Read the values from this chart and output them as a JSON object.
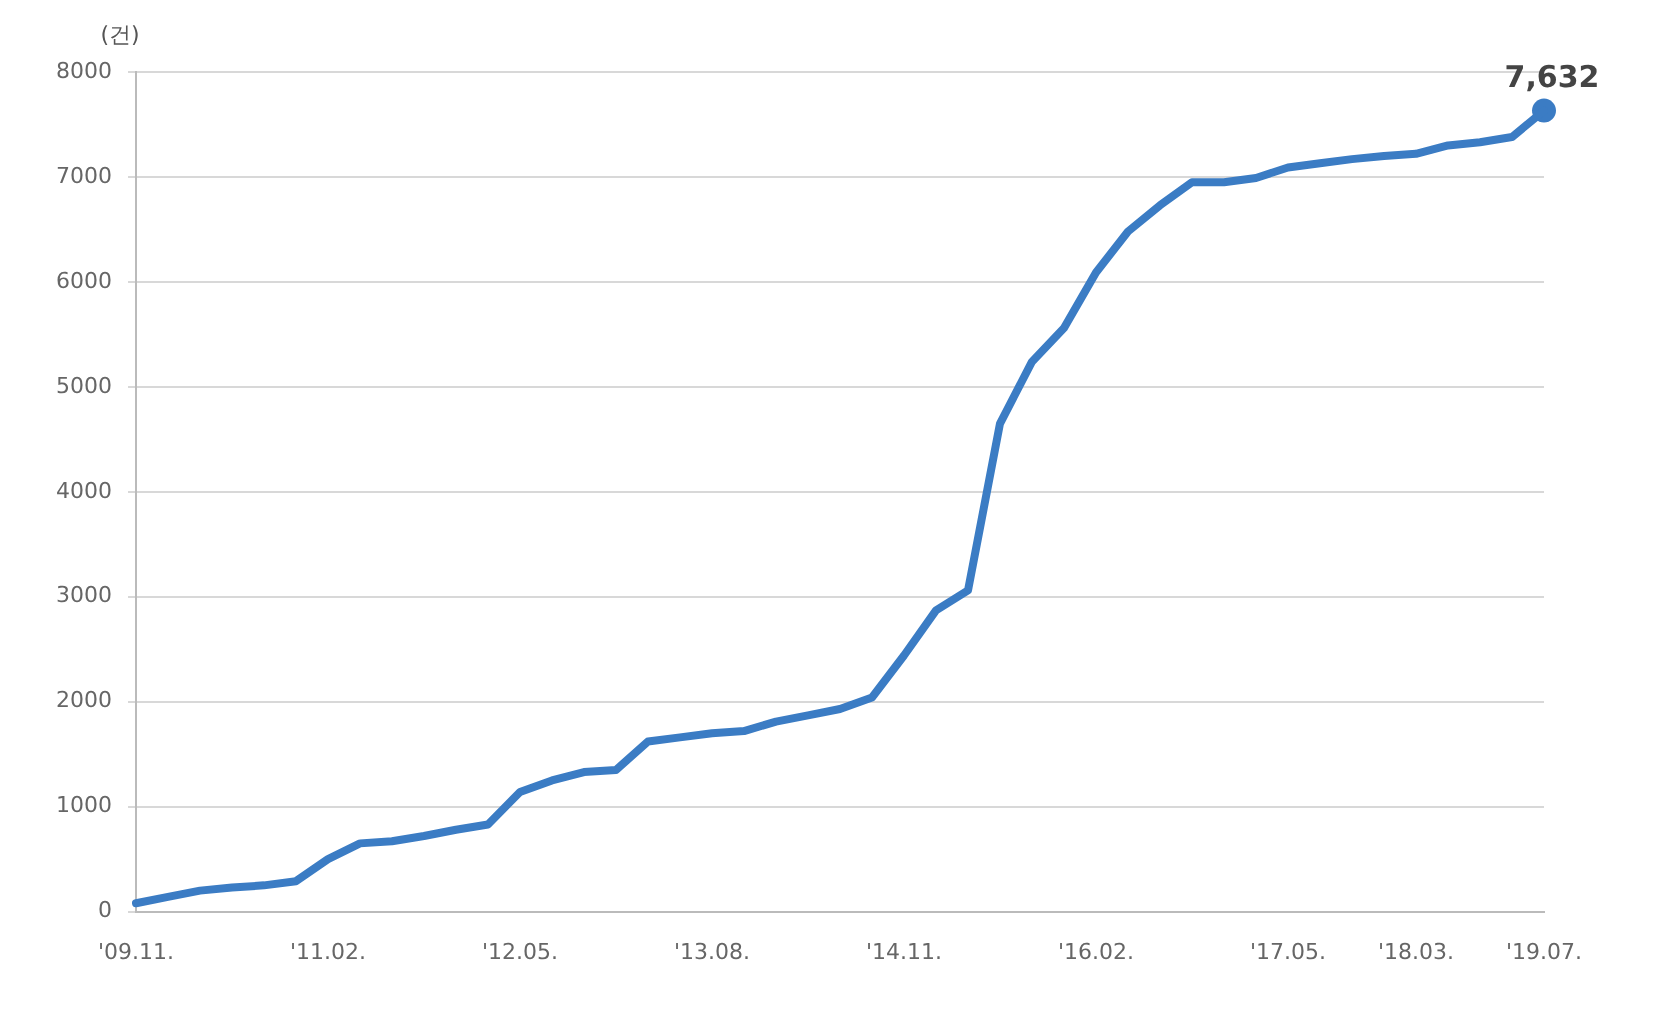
{
  "chart_data": {
    "type": "line",
    "ylabel": "(건)",
    "categories": [
      "'09.11.",
      null,
      null,
      null,
      null,
      null,
      "'11.02.",
      null,
      null,
      null,
      null,
      null,
      "'12.05.",
      null,
      null,
      null,
      null,
      null,
      "'13.08.",
      null,
      null,
      null,
      null,
      null,
      "'14.11.",
      null,
      null,
      null,
      null,
      null,
      "'16.02.",
      null,
      null,
      null,
      null,
      null,
      "'17.05.",
      null,
      null,
      null,
      "'18.03.",
      null,
      null,
      null,
      "'19.07."
    ],
    "series": [
      {
        "color": "#3b7cc4",
        "marker": "none",
        "values": [
          80,
          140,
          200,
          230,
          250,
          290,
          500,
          650,
          670,
          720,
          780,
          830,
          1140,
          1250,
          1330,
          1350,
          1620,
          1660,
          1700,
          1720,
          1810,
          1870,
          1930,
          2040,
          2440,
          2870,
          3060,
          4650,
          5240,
          5560,
          6090,
          6480,
          6730,
          6950,
          6950,
          6990,
          7090,
          7130,
          7170,
          7200,
          7220,
          7300,
          7330,
          7380,
          7632
        ]
      },
      {
        "type": "scatter",
        "color": "#3b7cc4",
        "marker": "circle",
        "x": [
          "'19.07."
        ],
        "values": [
          7632
        ],
        "value_labels": [
          "7,632"
        ]
      }
    ],
    "ylim": [
      0,
      8000
    ],
    "yticks": [
      0,
      1000,
      2000,
      3000,
      4000,
      5000,
      6000,
      7000,
      8000
    ],
    "grid": "y",
    "legend": false
  }
}
